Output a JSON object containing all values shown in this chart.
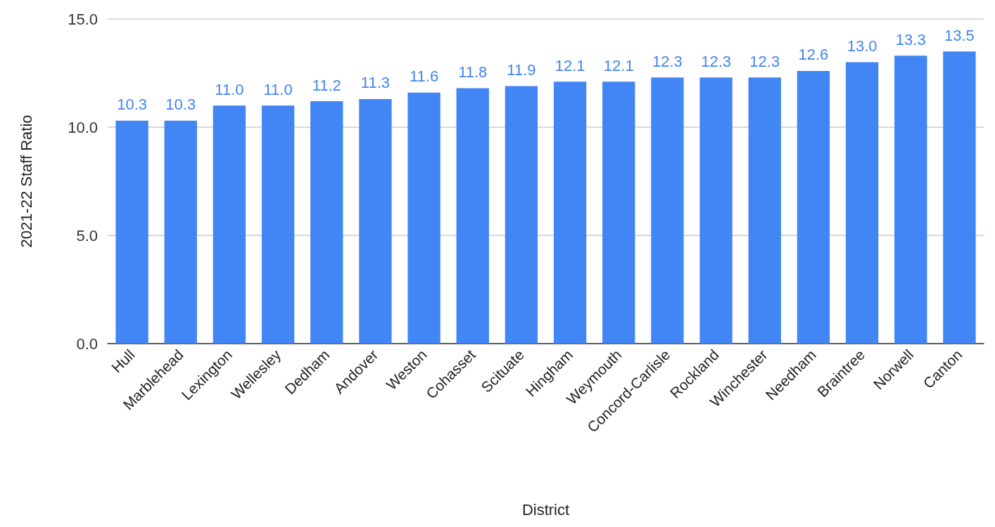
{
  "chart_data": {
    "type": "bar",
    "xlabel": "District",
    "ylabel": "2021-22 Staff Ratio",
    "categories": [
      "Hull",
      "Marblehead",
      "Lexington",
      "Wellesley",
      "Dedham",
      "Andover",
      "Weston",
      "Cohasset",
      "Scituate",
      "Hingham",
      "Weymouth",
      "Concord-Carlisle",
      "Rockland",
      "Winchester",
      "Needham",
      "Braintree",
      "Norwell",
      "Canton"
    ],
    "values": [
      10.3,
      10.3,
      11.0,
      11.0,
      11.2,
      11.3,
      11.6,
      11.8,
      11.9,
      12.1,
      12.1,
      12.3,
      12.3,
      12.3,
      12.6,
      13.0,
      13.3,
      13.5
    ],
    "value_labels": [
      "10.3",
      "10.3",
      "11.0",
      "11.0",
      "11.2",
      "11.3",
      "11.6",
      "11.8",
      "11.9",
      "12.1",
      "12.1",
      "12.3",
      "12.3",
      "12.3",
      "12.6",
      "13.0",
      "13.3",
      "13.5"
    ],
    "color": "#4285f4",
    "ylim": [
      0,
      15
    ],
    "yticks": [
      {
        "value": 0,
        "label": "0.0"
      },
      {
        "value": 5,
        "label": "5.0"
      },
      {
        "value": 10,
        "label": "10.0"
      },
      {
        "value": 15,
        "label": "15.0"
      }
    ],
    "grid": "y"
  }
}
